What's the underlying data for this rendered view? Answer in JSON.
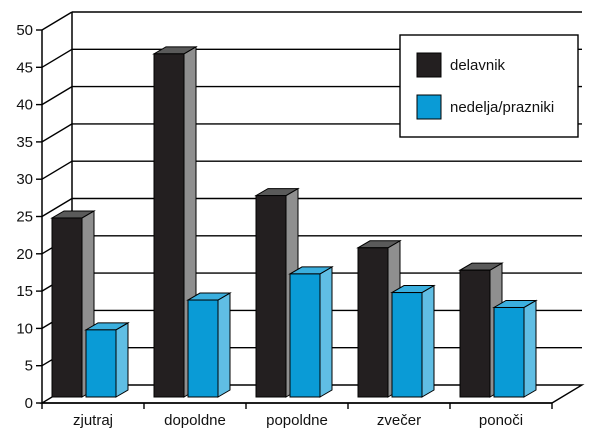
{
  "chart_data": {
    "type": "bar",
    "title": "",
    "xlabel": "",
    "ylabel": "",
    "categories": [
      "zjutraj",
      "dopoldne",
      "popoldne",
      "zvečer",
      "ponoči"
    ],
    "series": [
      {
        "name": "delavnik",
        "values": [
          24,
          46,
          27,
          20,
          17
        ],
        "color": "#231f20"
      },
      {
        "name": "nedelja/prazniki",
        "values": [
          9,
          13,
          16.5,
          14,
          12
        ],
        "color": "#0a9bd6"
      }
    ],
    "ylim": [
      0,
      50
    ],
    "yticks": [
      "0",
      "5",
      "10",
      "15",
      "20",
      "25",
      "30",
      "35",
      "40",
      "45",
      "50"
    ],
    "grid": true,
    "three_d": true,
    "legend_position": "top-right"
  }
}
